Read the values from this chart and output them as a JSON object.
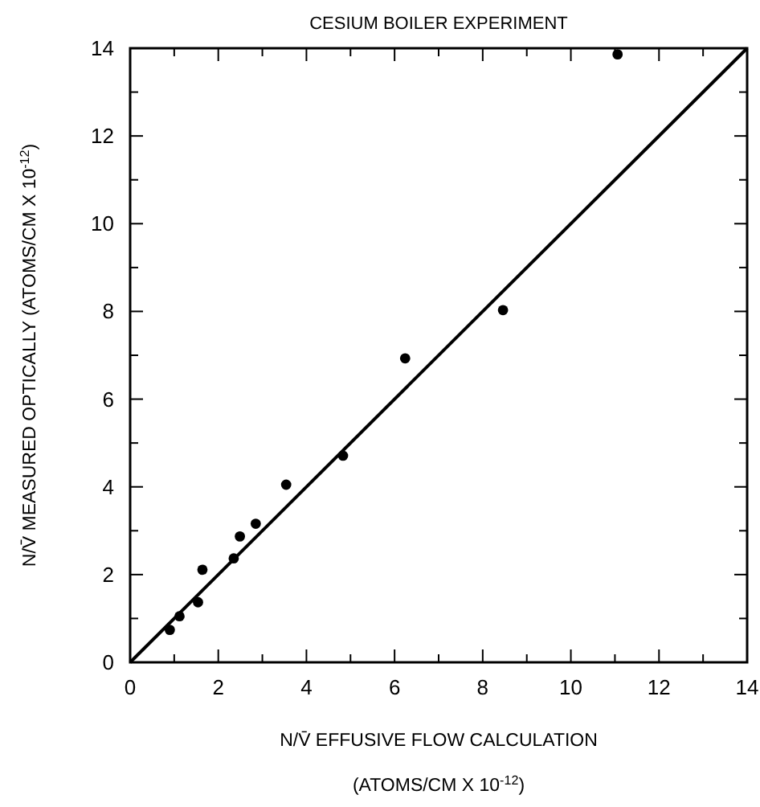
{
  "chart_data": {
    "type": "scatter",
    "title": "CESIUM BOILER EXPERIMENT",
    "xlabel": "N/V̄ EFFUSIVE FLOW CALCULATION\n(ATOMS/CM X 10$^{-12}$)",
    "ylabel": "N/V̄ MEASURED OPTICALLY (ATOMS/CM X 10$^{-12}$)",
    "xlim": [
      0,
      14
    ],
    "ylim": [
      0,
      14
    ],
    "xticks": [
      0,
      {
        "value": 1,
        "label": null
      },
      2,
      {
        "value": 3,
        "label": null
      },
      4,
      {
        "value": 5,
        "label": null
      },
      6,
      {
        "value": 7,
        "label": null
      },
      8,
      {
        "value": 9,
        "label": null
      },
      10,
      {
        "value": 11,
        "label": null
      },
      12,
      {
        "value": 13,
        "label": null
      },
      14
    ],
    "yticks": [
      0,
      {
        "value": 1,
        "label": null
      },
      2,
      {
        "value": 3,
        "label": null
      },
      4,
      {
        "value": 5,
        "label": null
      },
      6,
      {
        "value": 7,
        "label": null
      },
      8,
      {
        "value": 9,
        "label": null
      },
      10,
      {
        "value": 11,
        "label": null
      },
      12,
      {
        "value": 13,
        "label": null
      },
      14
    ],
    "grid": false,
    "series": [
      {
        "color": "#000000",
        "marker": "circle",
        "x": [
          0.9,
          1.12,
          1.54,
          1.64,
          2.35,
          2.49,
          2.85,
          3.54,
          4.83,
          6.24,
          8.46,
          11.06
        ],
        "values": [
          0.74,
          1.05,
          1.37,
          2.11,
          2.37,
          2.87,
          3.16,
          4.05,
          4.71,
          6.93,
          8.03,
          13.86
        ]
      },
      {
        "type": "line",
        "color": "#000000",
        "marker": "none",
        "line_style": "solid",
        "x": [
          0,
          14
        ],
        "values": [
          0,
          14
        ]
      }
    ]
  }
}
